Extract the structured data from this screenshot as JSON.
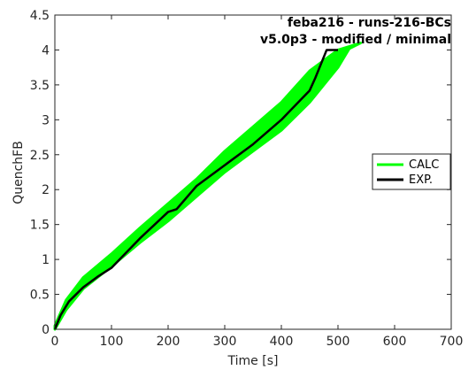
{
  "chart_data": {
    "type": "line",
    "title_lines": [
      "feba216 - runs-216-BCs",
      "v5.0p3 - modified / minimal"
    ],
    "xlabel": "Time [s]",
    "ylabel": "QuenchFB",
    "xlim": [
      0,
      700
    ],
    "ylim": [
      0,
      4.5
    ],
    "xticks": [
      0,
      100,
      200,
      300,
      400,
      500,
      600,
      700
    ],
    "yticks": [
      0,
      0.5,
      1,
      1.5,
      2,
      2.5,
      3,
      3.5,
      4,
      4.5
    ],
    "grid": false,
    "legend_position": "right",
    "series": [
      {
        "name": "CALC",
        "color": "#00ff00",
        "lower": {
          "x": [
            0,
            20,
            50,
            100,
            150,
            200,
            250,
            300,
            350,
            400,
            450,
            500,
            520
          ],
          "y": [
            0,
            0.28,
            0.58,
            0.9,
            1.24,
            1.55,
            1.9,
            2.25,
            2.55,
            2.85,
            3.25,
            3.75,
            4.02
          ]
        },
        "upper": {
          "x": [
            0,
            20,
            50,
            100,
            150,
            200,
            250,
            300,
            350,
            400,
            450,
            500,
            540
          ],
          "y": [
            0.05,
            0.42,
            0.74,
            1.08,
            1.45,
            1.8,
            2.15,
            2.55,
            2.9,
            3.25,
            3.7,
            4.0,
            4.1
          ]
        }
      },
      {
        "name": "EXP.",
        "color": "#000000",
        "x": [
          0,
          10,
          25,
          50,
          75,
          100,
          150,
          200,
          215,
          250,
          300,
          350,
          400,
          450,
          460,
          470,
          480,
          500
        ],
        "y": [
          0,
          0.2,
          0.4,
          0.6,
          0.75,
          0.88,
          1.3,
          1.68,
          1.72,
          2.05,
          2.35,
          2.65,
          3.0,
          3.42,
          3.6,
          3.8,
          4.0,
          4.0
        ]
      }
    ]
  }
}
